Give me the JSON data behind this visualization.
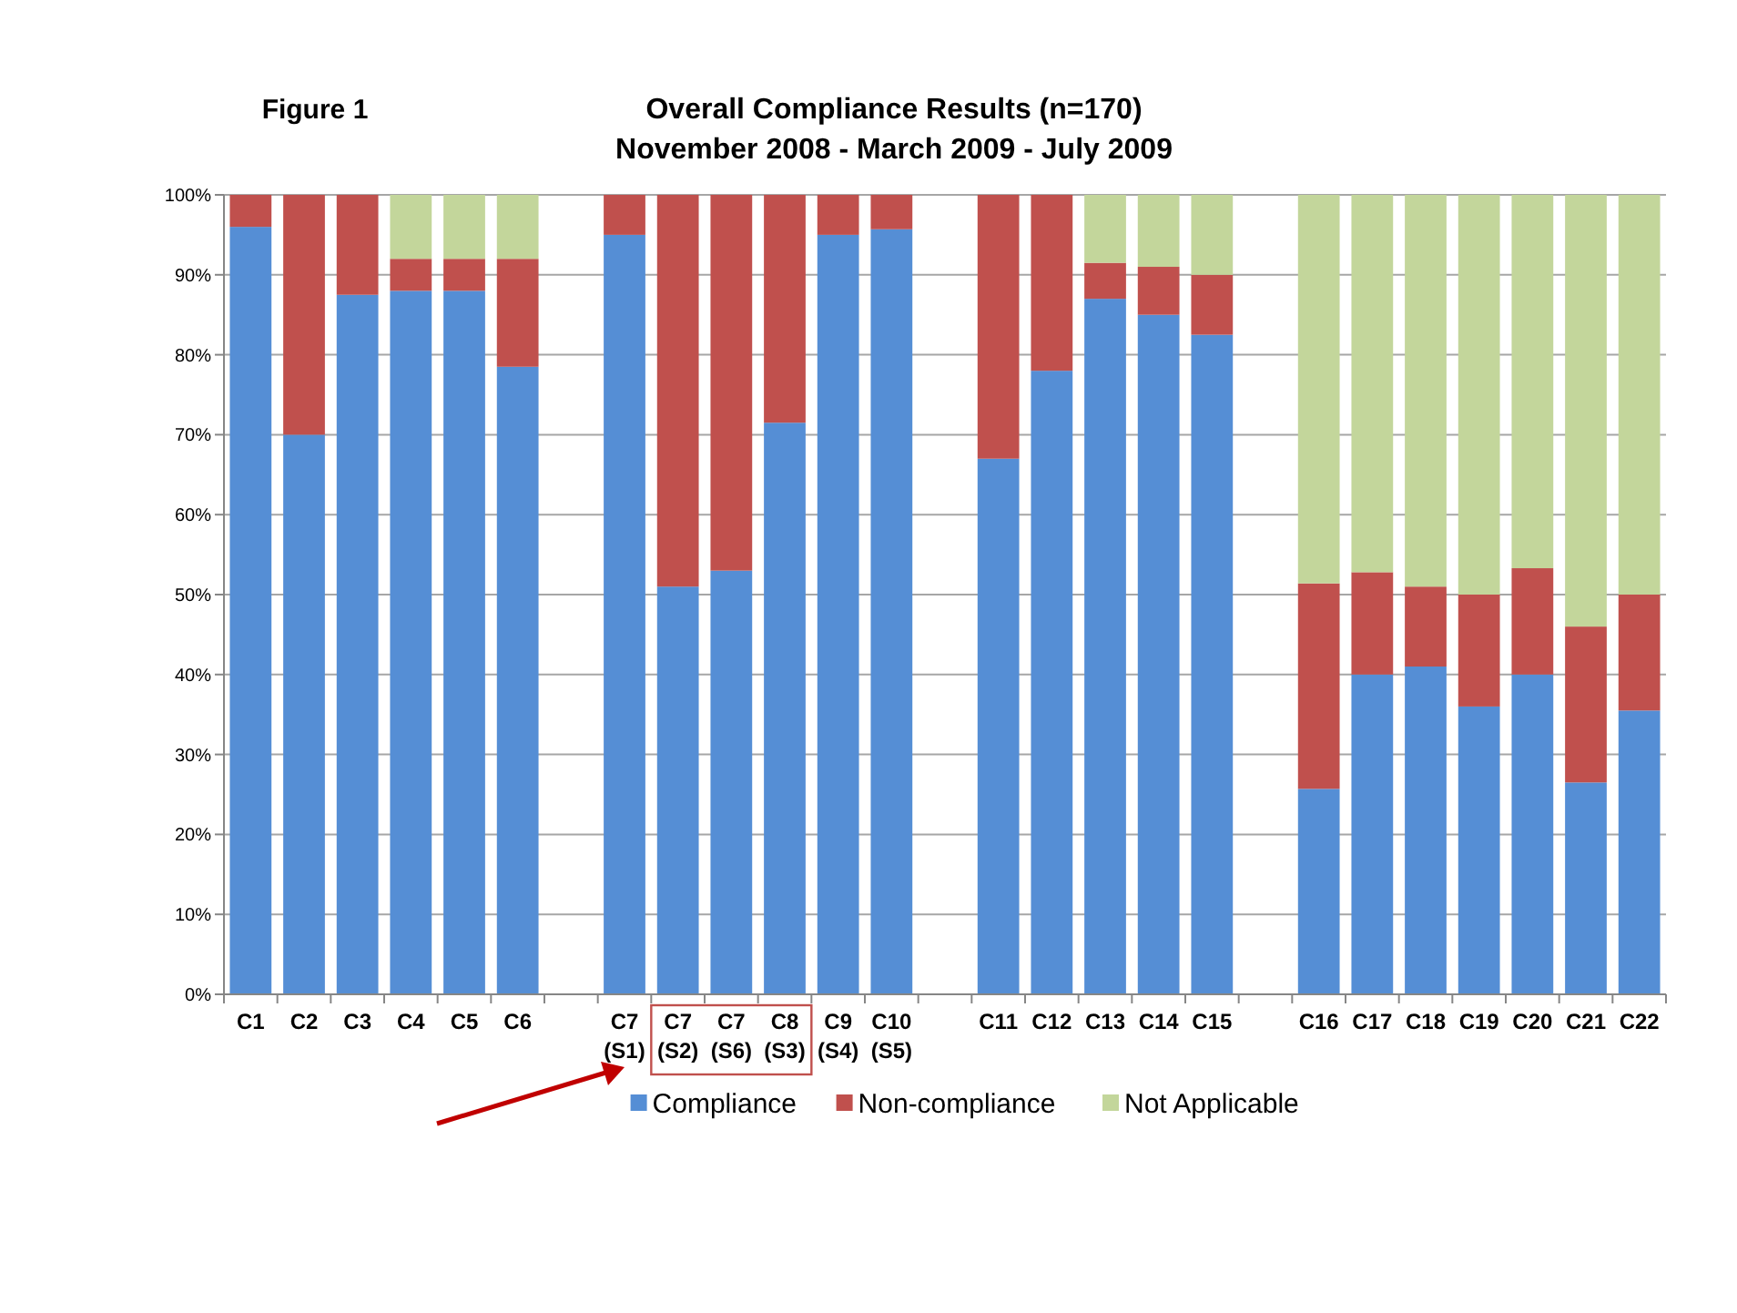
{
  "chart_data": {
    "type": "bar",
    "title": "Overall Compliance Results (n=170)",
    "subtitle": "November 2008 - March 2009 - July 2009",
    "annotations": [
      "Figure 1"
    ],
    "categories": [
      "C1",
      "C2",
      "C3",
      "C4",
      "C5",
      "C6",
      null,
      "C7\n(S1)",
      "C7\n(S2)",
      "C7\n(S6)",
      "C8\n(S3)",
      "C9\n(S4)",
      "C10\n(S5)",
      null,
      "C11",
      "C12",
      "C13",
      "C14",
      "C15",
      null,
      "C16",
      "C17",
      "C18",
      "C19",
      "C20",
      "C21",
      "C22"
    ],
    "stacked": true,
    "grid": "y",
    "legend": "bottom",
    "ylim": [
      0,
      1
    ],
    "yticks": [
      {
        "value": 0,
        "label": "0%"
      },
      {
        "value": 0.1,
        "label": "10%"
      },
      {
        "value": 0.2,
        "label": "20%"
      },
      {
        "value": 0.3,
        "label": "30%"
      },
      {
        "value": 0.4,
        "label": "40%"
      },
      {
        "value": 0.5,
        "label": "50%"
      },
      {
        "value": 0.6,
        "label": "60%"
      },
      {
        "value": 0.7,
        "label": "70%"
      },
      {
        "value": 0.8,
        "label": "80%"
      },
      {
        "value": 0.9,
        "label": "90%"
      },
      {
        "value": 1,
        "label": "100%"
      }
    ],
    "series": [
      {
        "name": "Compliance",
        "color": "#558ed5",
        "values": [
          0.96,
          0.7,
          0.875,
          0.88,
          0.88,
          0.785,
          null,
          0.95,
          0.51,
          0.53,
          0.715,
          0.95,
          0.957,
          null,
          0.67,
          0.78,
          0.87,
          0.85,
          0.825,
          null,
          0.257,
          0.4,
          0.41,
          0.36,
          0.4,
          0.265,
          0.355
        ]
      },
      {
        "name": "Non-compliance",
        "color": "#c0504d",
        "values": [
          0.04,
          0.3,
          0.125,
          0.04,
          0.04,
          0.135,
          null,
          0.05,
          0.49,
          0.47,
          0.285,
          0.05,
          0.043,
          null,
          0.33,
          0.22,
          0.045,
          0.06,
          0.075,
          null,
          0.257,
          0.128,
          0.1,
          0.14,
          0.133,
          0.195,
          0.145
        ]
      },
      {
        "name": "Not Applicable",
        "color": "#c3d69b",
        "values": [
          0,
          0,
          0,
          0.08,
          0.08,
          0.08,
          null,
          0,
          0,
          0,
          0,
          0,
          0,
          null,
          0,
          0,
          0.085,
          0.09,
          0.1,
          null,
          0.486,
          0.472,
          0.49,
          0.5,
          0.467,
          0.54,
          0.5
        ]
      }
    ]
  }
}
